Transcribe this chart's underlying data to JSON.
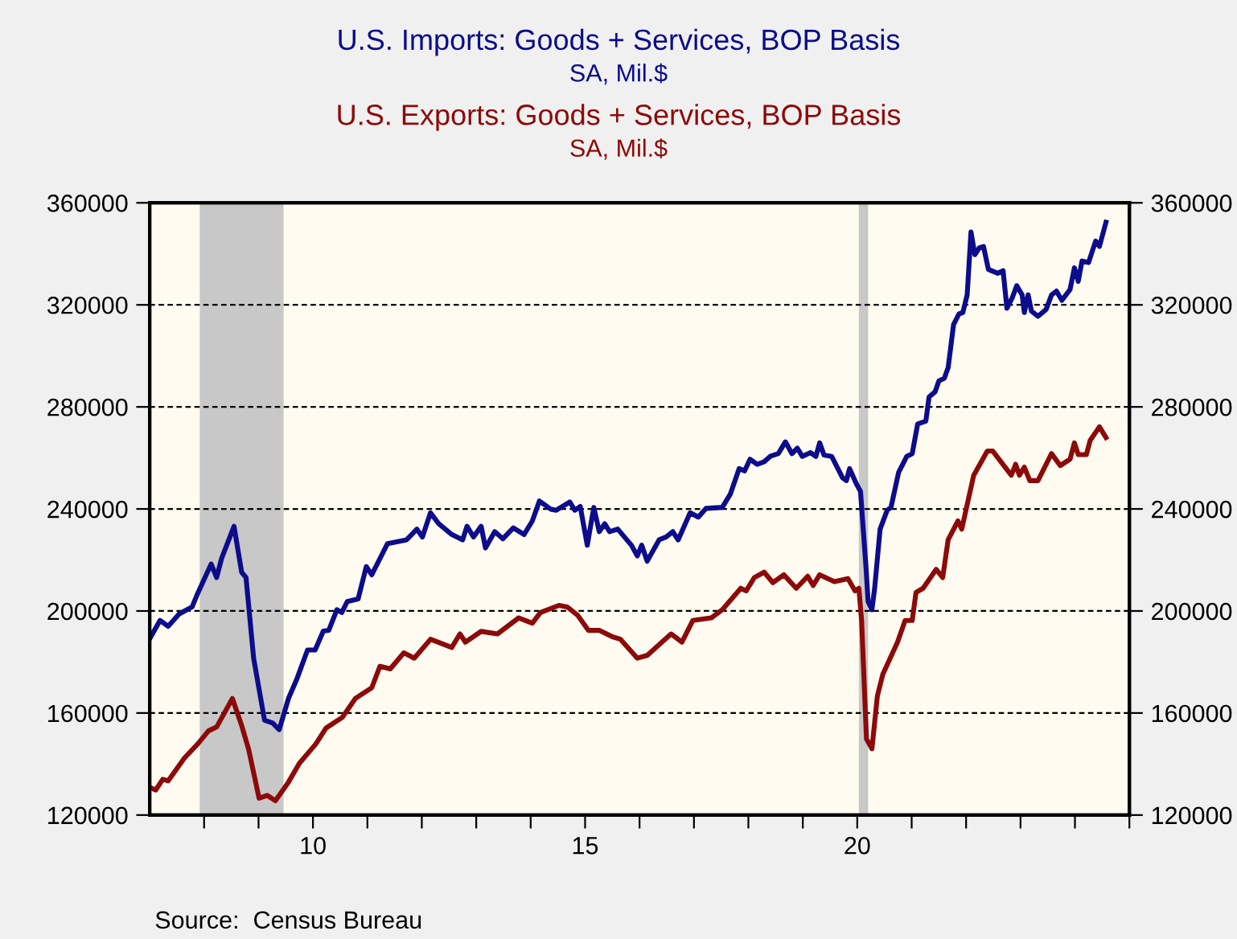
{
  "chart_data": {
    "type": "line",
    "series": [
      {
        "name": "U.S. Imports: Goods + Services, BOP Basis",
        "color": "#0c0c8c",
        "x": [
          2007.0,
          2007.19,
          2007.34,
          2007.54,
          2007.78,
          2007.88,
          2008.13,
          2008.23,
          2008.32,
          2008.55,
          2008.69,
          2008.77,
          2008.91,
          2009.11,
          2009.26,
          2009.38,
          2009.55,
          2009.7,
          2009.9,
          2010.04,
          2010.19,
          2010.29,
          2010.44,
          2010.53,
          2010.63,
          2010.83,
          2010.98,
          2011.08,
          2011.23,
          2011.37,
          2011.72,
          2011.91,
          2012.01,
          2012.16,
          2012.31,
          2012.55,
          2012.75,
          2012.83,
          2012.95,
          2013.09,
          2013.17,
          2013.34,
          2013.49,
          2013.68,
          2013.88,
          2014.03,
          2014.16,
          2014.37,
          2014.47,
          2014.72,
          2014.81,
          2014.91,
          2015.04,
          2015.16,
          2015.26,
          2015.36,
          2015.45,
          2015.6,
          2015.85,
          2015.96,
          2016.04,
          2016.14,
          2016.36,
          2016.49,
          2016.61,
          2016.71,
          2016.93,
          2017.08,
          2017.22,
          2017.52,
          2017.67,
          2017.83,
          2017.93,
          2018.03,
          2018.16,
          2018.29,
          2018.4,
          2018.55,
          2018.68,
          2018.8,
          2018.9,
          2018.99,
          2019.14,
          2019.24,
          2019.31,
          2019.39,
          2019.53,
          2019.73,
          2019.8,
          2019.86,
          2019.98,
          2020.06,
          2020.16,
          2020.2,
          2020.27,
          2020.32,
          2020.42,
          2020.55,
          2020.62,
          2020.76,
          2020.91,
          2021.01,
          2021.11,
          2021.26,
          2021.32,
          2021.43,
          2021.5,
          2021.6,
          2021.67,
          2021.77,
          2021.87,
          2021.94,
          2022.02,
          2022.09,
          2022.16,
          2022.24,
          2022.32,
          2022.41,
          2022.58,
          2022.68,
          2022.75,
          2022.85,
          2022.93,
          2023.03,
          2023.07,
          2023.14,
          2023.2,
          2023.32,
          2023.47,
          2023.57,
          2023.66,
          2023.76,
          2023.91,
          2023.99,
          2024.06,
          2024.13,
          2024.25,
          2024.38,
          2024.45,
          2024.57
        ],
        "values": [
          189100,
          196300,
          194000,
          198800,
          201600,
          206800,
          218400,
          213100,
          220500,
          233200,
          215200,
          213100,
          181500,
          157200,
          156100,
          153500,
          165700,
          173100,
          184700,
          184700,
          192100,
          192400,
          200500,
          199400,
          203700,
          204700,
          217400,
          214200,
          220500,
          226400,
          227900,
          232100,
          229000,
          238500,
          234200,
          230000,
          227900,
          233200,
          229000,
          233200,
          224700,
          231100,
          228300,
          232600,
          230000,
          235300,
          243100,
          239900,
          239500,
          242700,
          239500,
          241000,
          225800,
          240600,
          231100,
          234200,
          231100,
          232100,
          225800,
          221600,
          225800,
          219500,
          227900,
          229000,
          231100,
          227900,
          238500,
          236800,
          240200,
          240600,
          245900,
          255800,
          254900,
          259500,
          257500,
          258500,
          260600,
          261700,
          266300,
          261700,
          263800,
          260600,
          262100,
          260600,
          265900,
          261100,
          260600,
          252200,
          251100,
          255800,
          250000,
          246900,
          217400,
          203700,
          200500,
          208900,
          232100,
          239500,
          240600,
          254300,
          260600,
          261700,
          273300,
          274400,
          283900,
          285900,
          290200,
          291200,
          295400,
          312300,
          316500,
          317000,
          323900,
          348600,
          339700,
          342300,
          342900,
          333900,
          332400,
          333400,
          318700,
          322900,
          327500,
          323900,
          317000,
          323900,
          317600,
          315500,
          318200,
          323900,
          325400,
          321800,
          326000,
          334500,
          329200,
          337200,
          336600,
          345000,
          342900,
          352400
        ]
      },
      {
        "name": "U.S. Exports: Goods + Services, BOP Basis",
        "color": "#8c0a0a",
        "x": [
          2007.0,
          2007.11,
          2007.24,
          2007.34,
          2007.64,
          2007.88,
          2008.08,
          2008.23,
          2008.52,
          2008.69,
          2008.82,
          2009.01,
          2009.16,
          2009.31,
          2009.55,
          2009.75,
          2010.05,
          2010.24,
          2010.54,
          2010.78,
          2011.08,
          2011.23,
          2011.42,
          2011.67,
          2011.86,
          2012.16,
          2012.55,
          2012.7,
          2012.8,
          2013.09,
          2013.39,
          2013.78,
          2014.03,
          2014.18,
          2014.52,
          2014.67,
          2014.86,
          2015.06,
          2015.26,
          2015.5,
          2015.65,
          2015.96,
          2016.14,
          2016.58,
          2016.78,
          2016.98,
          2017.32,
          2017.52,
          2017.86,
          2017.96,
          2018.11,
          2018.29,
          2018.45,
          2018.65,
          2018.88,
          2019.09,
          2019.19,
          2019.31,
          2019.58,
          2019.83,
          2019.96,
          2020.03,
          2020.08,
          2020.17,
          2020.27,
          2020.37,
          2020.47,
          2020.74,
          2020.88,
          2021.01,
          2021.08,
          2021.21,
          2021.45,
          2021.57,
          2021.67,
          2021.85,
          2021.92,
          2022.14,
          2022.39,
          2022.49,
          2022.83,
          2022.91,
          2022.98,
          2023.07,
          2023.17,
          2023.32,
          2023.57,
          2023.73,
          2023.91,
          2023.99,
          2024.06,
          2024.21,
          2024.28,
          2024.45,
          2024.57
        ],
        "values": [
          130900,
          129800,
          134000,
          133400,
          142400,
          147800,
          153000,
          154500,
          165700,
          155100,
          145600,
          126600,
          127700,
          125600,
          132900,
          140300,
          147800,
          154100,
          158300,
          165700,
          169900,
          178300,
          177300,
          183600,
          181500,
          188900,
          185700,
          191000,
          187800,
          192000,
          191000,
          197300,
          195200,
          199400,
          202200,
          201600,
          198400,
          192400,
          192400,
          189900,
          188900,
          181500,
          182600,
          191000,
          187800,
          196300,
          197300,
          200500,
          208900,
          207900,
          213100,
          215200,
          211100,
          214200,
          208900,
          213600,
          210000,
          214200,
          211500,
          212700,
          207900,
          208900,
          196300,
          149800,
          146000,
          166700,
          175200,
          187800,
          196300,
          196300,
          207300,
          208900,
          216300,
          213100,
          227900,
          235300,
          232100,
          253200,
          262700,
          262700,
          253200,
          257500,
          253200,
          256400,
          251100,
          251100,
          261700,
          257000,
          259500,
          265900,
          261300,
          261300,
          266900,
          272200,
          268000
        ]
      }
    ],
    "subtitle": "SA, Mil.$",
    "annotations": [
      "Source:  Census Bureau"
    ],
    "xlim": [
      2007,
      2025
    ],
    "xticks": [
      {
        "value": 2008,
        "label": null
      },
      {
        "value": 2009,
        "label": null
      },
      {
        "value": 2010,
        "label": "10"
      },
      {
        "value": 2011,
        "label": null
      },
      {
        "value": 2012,
        "label": null
      },
      {
        "value": 2013,
        "label": null
      },
      {
        "value": 2014,
        "label": null
      },
      {
        "value": 2015,
        "label": "15"
      },
      {
        "value": 2016,
        "label": null
      },
      {
        "value": 2017,
        "label": null
      },
      {
        "value": 2018,
        "label": null
      },
      {
        "value": 2019,
        "label": null
      },
      {
        "value": 2020,
        "label": "20"
      },
      {
        "value": 2021,
        "label": null
      },
      {
        "value": 2022,
        "label": null
      },
      {
        "value": 2023,
        "label": null
      },
      {
        "value": 2024,
        "label": null
      },
      {
        "value": 2025,
        "label": null
      }
    ],
    "ylim": [
      120000,
      360000
    ],
    "yticks": [
      120000,
      160000,
      200000,
      240000,
      280000,
      320000,
      360000
    ],
    "y2lim": [
      120000,
      360000
    ],
    "y2ticks": [
      120000,
      160000,
      200000,
      240000,
      280000,
      320000,
      360000
    ],
    "bands": [
      {
        "axis": "x",
        "from": 2007.92,
        "to": 2009.46,
        "color": "#c8c8c8"
      },
      {
        "axis": "x",
        "from": 2020.03,
        "to": 2020.2,
        "color": "#c8c8c8"
      }
    ],
    "grid": "y",
    "line_style": "solid",
    "marker": "none"
  }
}
